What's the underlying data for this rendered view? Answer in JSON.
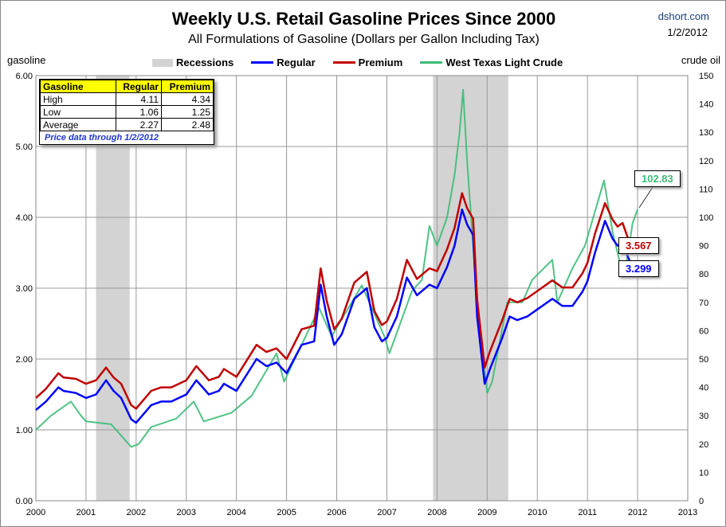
{
  "header": {
    "title": "Weekly U.S. Retail Gasoline Prices Since 2000",
    "subtitle": "All Formulations of Gasoline (Dollars per Gallon Including Tax)",
    "source": "dshort.com",
    "date": "1/2/2012"
  },
  "chart_data": {
    "type": "line",
    "title": "Weekly U.S. Retail Gasoline Prices Since 2000",
    "ylabel": "gasoline",
    "y2label": "crude oil",
    "xlim": [
      2000,
      2013
    ],
    "ylim": [
      0,
      6
    ],
    "y2lim": [
      0,
      150
    ],
    "xticks": [
      "2000",
      "2001",
      "2002",
      "2003",
      "2004",
      "2005",
      "2006",
      "2007",
      "2008",
      "2009",
      "2010",
      "2011",
      "2012",
      "2013"
    ],
    "yticks": [
      "0.00",
      "1.00",
      "2.00",
      "3.00",
      "4.00",
      "5.00",
      "6.00"
    ],
    "y2ticks": [
      "0",
      "10",
      "20",
      "30",
      "40",
      "50",
      "60",
      "70",
      "80",
      "90",
      "100",
      "110",
      "120",
      "130",
      "140",
      "150"
    ],
    "legend": [
      "Recessions",
      "Regular",
      "Premium",
      "West Texas Light Crude"
    ],
    "recessions": [
      [
        2001.2,
        2001.87
      ],
      [
        2007.92,
        2009.42
      ]
    ],
    "series": [
      {
        "name": "Regular",
        "color": "#0000ff",
        "axis": "left",
        "x": [
          2000,
          2000.2,
          2000.45,
          2000.55,
          2000.8,
          2001,
          2001.2,
          2001.4,
          2001.55,
          2001.7,
          2001.9,
          2002,
          2002.3,
          2002.5,
          2002.7,
          2003,
          2003.2,
          2003.45,
          2003.65,
          2003.75,
          2004,
          2004.4,
          2004.6,
          2004.8,
          2005,
          2005.3,
          2005.55,
          2005.68,
          2005.8,
          2005.95,
          2006.1,
          2006.35,
          2006.6,
          2006.75,
          2006.9,
          2007,
          2007.2,
          2007.4,
          2007.6,
          2007.85,
          2008,
          2008.2,
          2008.35,
          2008.5,
          2008.6,
          2008.72,
          2008.8,
          2008.95,
          2009.05,
          2009.3,
          2009.45,
          2009.6,
          2009.8,
          2010,
          2010.3,
          2010.5,
          2010.7,
          2010.9,
          2011,
          2011.15,
          2011.35,
          2011.5,
          2011.6,
          2011.7,
          2011.8,
          2011.9,
          2012
        ],
        "y": [
          1.28,
          1.4,
          1.6,
          1.55,
          1.52,
          1.45,
          1.5,
          1.7,
          1.55,
          1.45,
          1.15,
          1.1,
          1.35,
          1.4,
          1.4,
          1.5,
          1.7,
          1.5,
          1.55,
          1.65,
          1.55,
          2.0,
          1.9,
          1.95,
          1.8,
          2.2,
          2.25,
          3.05,
          2.6,
          2.2,
          2.35,
          2.85,
          3.0,
          2.45,
          2.25,
          2.3,
          2.6,
          3.15,
          2.9,
          3.05,
          3.0,
          3.3,
          3.6,
          4.11,
          3.9,
          3.75,
          2.6,
          1.65,
          1.85,
          2.3,
          2.6,
          2.55,
          2.6,
          2.7,
          2.85,
          2.75,
          2.75,
          2.95,
          3.1,
          3.5,
          3.95,
          3.7,
          3.6,
          3.65,
          3.45,
          3.3,
          3.299
        ]
      },
      {
        "name": "Premium",
        "color": "#c00000",
        "axis": "left",
        "x": [
          2000,
          2000.2,
          2000.45,
          2000.55,
          2000.8,
          2001,
          2001.2,
          2001.4,
          2001.55,
          2001.7,
          2001.9,
          2002,
          2002.3,
          2002.5,
          2002.7,
          2003,
          2003.2,
          2003.45,
          2003.65,
          2003.75,
          2004,
          2004.4,
          2004.6,
          2004.8,
          2005,
          2005.3,
          2005.55,
          2005.68,
          2005.8,
          2005.95,
          2006.1,
          2006.35,
          2006.6,
          2006.75,
          2006.9,
          2007,
          2007.2,
          2007.4,
          2007.6,
          2007.85,
          2008,
          2008.2,
          2008.35,
          2008.5,
          2008.6,
          2008.72,
          2008.8,
          2008.95,
          2009.05,
          2009.3,
          2009.45,
          2009.6,
          2009.8,
          2010,
          2010.3,
          2010.5,
          2010.7,
          2010.9,
          2011,
          2011.15,
          2011.35,
          2011.5,
          2011.6,
          2011.7,
          2011.8,
          2011.9,
          2012
        ],
        "y": [
          1.45,
          1.58,
          1.8,
          1.74,
          1.72,
          1.65,
          1.7,
          1.88,
          1.74,
          1.65,
          1.35,
          1.3,
          1.55,
          1.6,
          1.6,
          1.7,
          1.9,
          1.7,
          1.75,
          1.86,
          1.75,
          2.2,
          2.1,
          2.15,
          2.0,
          2.42,
          2.47,
          3.28,
          2.82,
          2.42,
          2.57,
          3.08,
          3.23,
          2.68,
          2.48,
          2.53,
          2.85,
          3.4,
          3.13,
          3.28,
          3.24,
          3.55,
          3.85,
          4.34,
          4.13,
          3.98,
          2.84,
          1.88,
          2.1,
          2.55,
          2.85,
          2.8,
          2.86,
          2.96,
          3.11,
          3.01,
          3.01,
          3.21,
          3.36,
          3.77,
          4.2,
          3.97,
          3.87,
          3.92,
          3.72,
          3.58,
          3.567
        ]
      },
      {
        "name": "West Texas Light Crude",
        "color": "#3dbb78",
        "axis": "right",
        "x": [
          2000,
          2000.3,
          2000.7,
          2000.9,
          2001,
          2001.5,
          2001.9,
          2002.05,
          2002.3,
          2002.8,
          2003.15,
          2003.35,
          2003.9,
          2004.3,
          2004.8,
          2004.95,
          2005.3,
          2005.65,
          2005.9,
          2006.5,
          2006.95,
          2007.05,
          2007.5,
          2007.7,
          2007.85,
          2008,
          2008.2,
          2008.35,
          2008.45,
          2008.52,
          2008.6,
          2008.8,
          2009,
          2009.1,
          2009.4,
          2009.7,
          2009.9,
          2010.3,
          2010.4,
          2010.7,
          2010.95,
          2011.2,
          2011.33,
          2011.5,
          2011.7,
          2011.8,
          2011.9,
          2012
        ],
        "y": [
          25,
          30,
          35,
          30,
          28,
          27,
          19,
          20,
          26,
          29,
          35,
          28,
          31,
          37,
          52,
          42,
          55,
          68,
          58,
          76,
          58,
          52,
          74,
          78,
          97,
          90,
          100,
          115,
          130,
          145,
          120,
          70,
          38,
          42,
          70,
          70,
          78,
          85,
          70,
          82,
          90,
          105,
          113,
          95,
          80,
          86,
          98,
          102.83
        ]
      }
    ],
    "callouts": {
      "crude": "102.83",
      "premium": "3.567",
      "regular": "3.299"
    }
  },
  "table": {
    "headers": [
      "Gasoline",
      "Regular",
      "Premium"
    ],
    "rows": [
      [
        "High",
        "4.11",
        "4.34"
      ],
      [
        "Low",
        "1.06",
        "1.25"
      ],
      [
        "Average",
        "2.27",
        "2.48"
      ]
    ],
    "note": "Price data through 1/2/2012"
  }
}
